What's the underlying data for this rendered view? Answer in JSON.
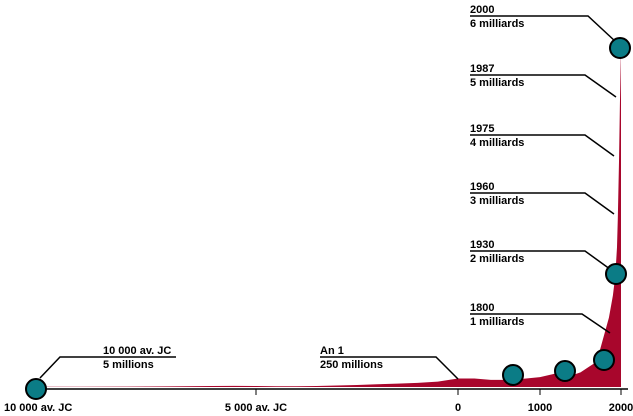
{
  "colors": {
    "area": "#a8062c",
    "marker": "#0b7c86",
    "marker_stroke": "#000000",
    "line": "#000000"
  },
  "chart_data": {
    "type": "area",
    "title": "",
    "xlabel": "",
    "ylabel": "",
    "x_ticks": [
      {
        "value": -10000,
        "label": "10 000 av. JC"
      },
      {
        "value": -5000,
        "label": "5 000 av. JC"
      },
      {
        "value": 0,
        "label": "0"
      },
      {
        "value": 1000,
        "label": "1000"
      },
      {
        "value": 2000,
        "label": "2000"
      }
    ],
    "annotations": [
      {
        "year": -10000,
        "line1": "10 000 av. JC",
        "line2": "5 millions"
      },
      {
        "year": 1,
        "line1": "An 1",
        "line2": "250 millions"
      },
      {
        "year": 1800,
        "line1": "1800",
        "line2": "1 milliards"
      },
      {
        "year": 1930,
        "line1": "1930",
        "line2": "2 milliards"
      },
      {
        "year": 1960,
        "line1": "1960",
        "line2": "3 milliards"
      },
      {
        "year": 1975,
        "line1": "1975",
        "line2": "4 milliards"
      },
      {
        "year": 1987,
        "line1": "1987",
        "line2": "5 milliards"
      },
      {
        "year": 2000,
        "line1": "2000",
        "line2": "6 milliards"
      }
    ],
    "markers": [
      {
        "year": -10000,
        "population_millions": 5
      },
      {
        "year": 700,
        "population_millions": 210
      },
      {
        "year": 1320,
        "population_millions": 360
      },
      {
        "year": 1800,
        "population_millions": 1000
      },
      {
        "year": 1930,
        "population_millions": 2000
      },
      {
        "year": 2000,
        "population_millions": 6000
      }
    ],
    "series": [
      {
        "x": [
          -10000,
          -9000,
          -8000,
          -7000,
          -6000,
          -5500,
          -5000,
          -4500,
          -4000,
          -3500,
          -3000,
          -2500,
          -2000,
          -1500,
          -1000,
          -500,
          0,
          200,
          400,
          600,
          800,
          1000,
          1200,
          1340,
          1400,
          1500,
          1600,
          1700,
          1800,
          1850,
          1900,
          1930,
          1950,
          1960,
          1975,
          1987,
          2000
        ],
        "y": [
          5,
          8,
          12,
          18,
          28,
          33,
          30,
          24,
          20,
          28,
          45,
          60,
          80,
          100,
          120,
          160,
          250,
          250,
          210,
          210,
          240,
          290,
          400,
          450,
          350,
          430,
          540,
          610,
          1000,
          1260,
          1650,
          2000,
          2500,
          3000,
          4000,
          5000,
          6000
        ]
      }
    ],
    "xlim": [
      -10000,
      2000
    ],
    "ylim": [
      0,
      6000
    ]
  }
}
